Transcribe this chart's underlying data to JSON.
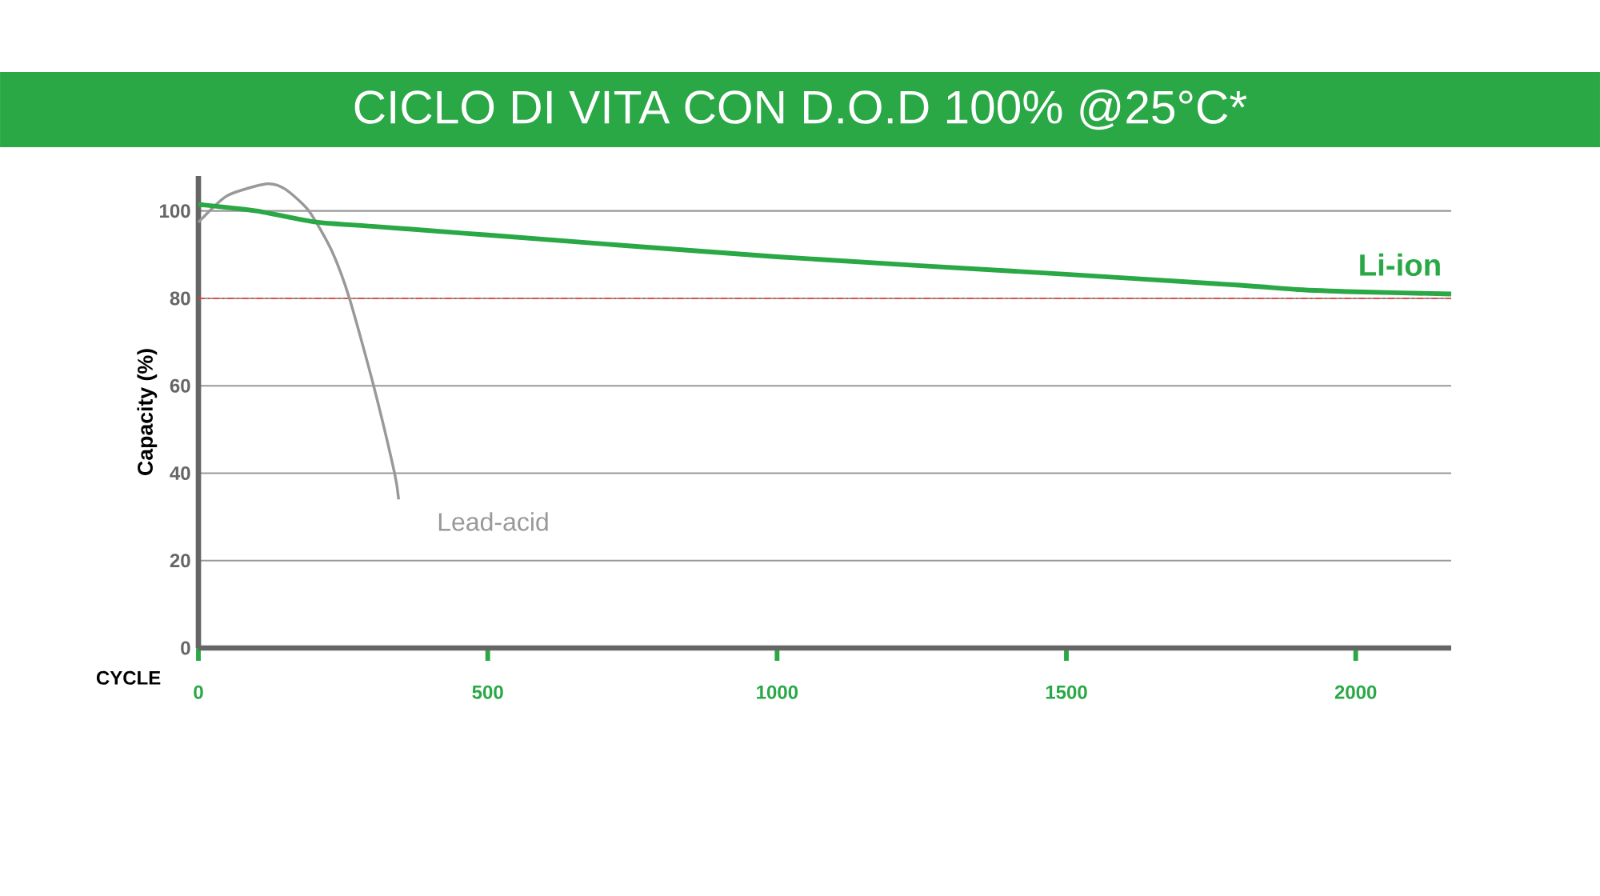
{
  "chart_data": {
    "type": "line",
    "title": "CICLO DI VITA CON D.O.D 100% @25°C*",
    "xlabel": "CYCLE",
    "ylabel": "Capacity (%)",
    "xlim": [
      0,
      2165
    ],
    "xticks": [
      0,
      500,
      1000,
      1500,
      2000
    ],
    "ylim": [
      0,
      108
    ],
    "yticks": [
      0,
      20,
      40,
      60,
      80,
      100
    ],
    "grid": "y",
    "marker": "none",
    "series": [
      {
        "name": "Li-ion",
        "color": "#2aa845",
        "x": [
          0,
          100,
          200,
          300,
          500,
          1000,
          1500,
          1800,
          1900,
          2000,
          2165
        ],
        "values": [
          101.5,
          100,
          97.5,
          96.5,
          94.5,
          89.5,
          85.5,
          83,
          82,
          81.5,
          81
        ]
      },
      {
        "name": "Lead-acid",
        "color": "#999999",
        "x": [
          0,
          50,
          118,
          150,
          191,
          230,
          261,
          302,
          339,
          346
        ],
        "values": [
          97.4,
          103.5,
          106.2,
          105,
          100,
          91,
          80,
          60.4,
          40,
          34
        ]
      }
    ],
    "ref_lines": [
      {
        "axis": "y",
        "value": 80,
        "color": "#ff3333",
        "line_style": "dashed"
      }
    ]
  }
}
